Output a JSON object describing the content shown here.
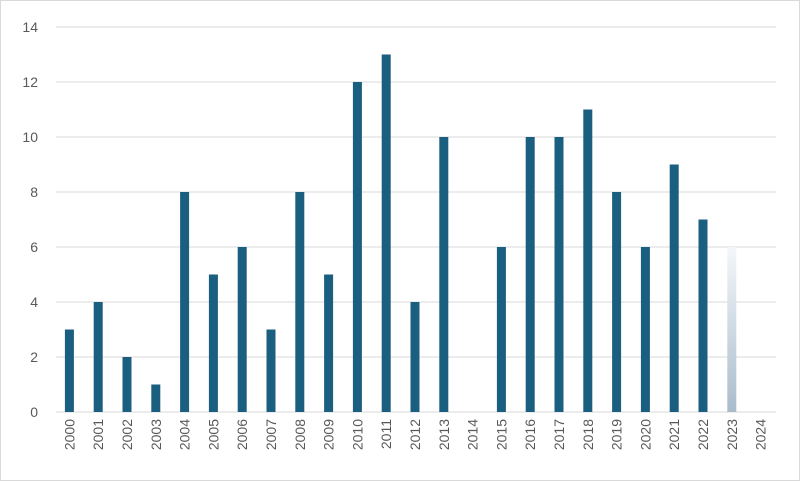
{
  "chart_data": {
    "type": "bar",
    "title": "",
    "xlabel": "",
    "ylabel": "",
    "categories": [
      "2000",
      "2001",
      "2002",
      "2003",
      "2004",
      "2005",
      "2006",
      "2007",
      "2008",
      "2009",
      "2010",
      "2011",
      "2012",
      "2013",
      "2014",
      "2015",
      "2016",
      "2017",
      "2018",
      "2019",
      "2020",
      "2021",
      "2022",
      "2023",
      "2024"
    ],
    "series": [
      {
        "values": [
          3,
          4,
          2,
          1,
          8,
          5,
          6,
          3,
          8,
          5,
          12,
          13,
          4,
          10,
          0,
          6,
          10,
          10,
          11,
          8,
          6,
          9,
          7,
          6,
          0
        ]
      }
    ],
    "ylim": [
      0,
      14
    ],
    "yticks": [
      "0",
      "2",
      "4",
      "6",
      "8",
      "10",
      "12",
      "14"
    ],
    "grid": true,
    "legend": "none",
    "colors": {
      "bar": "#1a5e80",
      "bar_faded_top": "#f4f7fa",
      "bar_faded_bottom": "#a9bccc",
      "grid": "#d9d9d9",
      "text": "#595959"
    },
    "faded_category": "2023"
  }
}
